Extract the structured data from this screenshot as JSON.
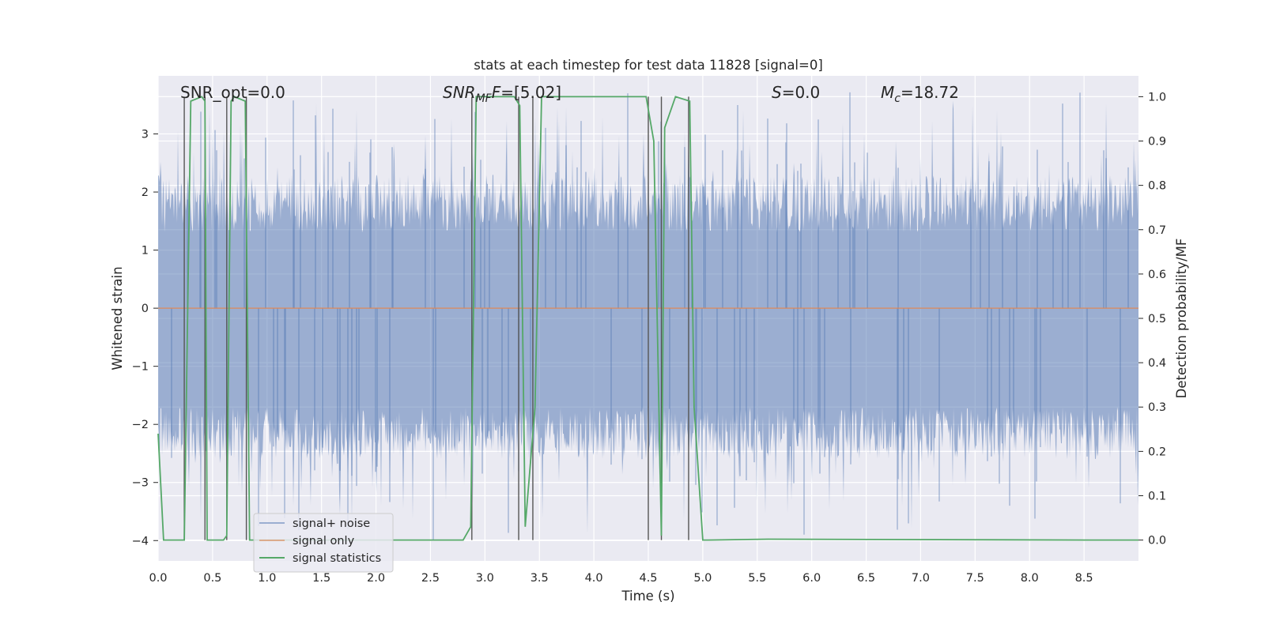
{
  "chart_data": {
    "type": "line",
    "title": "stats at each timestep for test data 11828 [signal=0]",
    "xlabel": "Time (s)",
    "ylabel": "Whitened strain",
    "y2label": "Detection probability/MF",
    "xlim": [
      0.0,
      9.0
    ],
    "ylim": [
      -4.35,
      4.0
    ],
    "y2lim": [
      -0.047,
      1.047
    ],
    "xticks": [
      "0.0",
      "0.5",
      "1.0",
      "1.5",
      "2.0",
      "2.5",
      "3.0",
      "3.5",
      "4.0",
      "4.5",
      "5.0",
      "5.5",
      "6.0",
      "6.5",
      "7.0",
      "7.5",
      "8.0",
      "8.5"
    ],
    "yticks": [
      "3",
      "2",
      "1",
      "0",
      "−1",
      "−2",
      "−3",
      "−4"
    ],
    "y2ticks": [
      "1.0",
      "0.9",
      "0.8",
      "0.7",
      "0.6",
      "0.5",
      "0.4",
      "0.3",
      "0.2",
      "0.1",
      "0.0"
    ],
    "grid": true,
    "legend_position": "lower-left",
    "annotations": {
      "snr_opt": "SNR_opt=0.0",
      "snr_mf_main": "SNR",
      "snr_mf_sub": "MF",
      "snr_mf_value": "=[5.02]",
      "s_label": "S",
      "s_value": "=0.0",
      "mc_main": "M",
      "mc_sub": "c",
      "mc_value": "=18.72"
    },
    "series": [
      {
        "name": "signal+ noise",
        "color": "#4c72b0",
        "axis": "left",
        "description_stat": "noise band",
        "band": {
          "core_low": -1.7,
          "core_high": 1.3,
          "peak_high": 3.6,
          "peak_low": -4.0
        },
        "samples_per_second": 1000,
        "x_range": [
          0.0,
          9.0
        ]
      },
      {
        "name": "signal only",
        "color": "#dd8452",
        "axis": "left",
        "x": [
          0.0,
          9.0
        ],
        "y": [
          0.0,
          0.0
        ]
      },
      {
        "name": "signal statistics",
        "color": "#55a868",
        "axis": "right",
        "x": [
          0.0,
          0.05,
          0.24,
          0.3,
          0.4,
          0.43,
          0.45,
          0.5,
          0.52,
          0.6,
          0.63,
          0.67,
          0.7,
          0.8,
          0.84,
          0.9,
          2.8,
          2.87,
          2.92,
          3.27,
          3.32,
          3.37,
          3.46,
          3.52,
          4.48,
          4.55,
          4.62,
          4.65,
          4.75,
          4.88,
          4.92,
          5.0,
          5.05,
          5.6,
          8.55,
          9.0
        ],
        "y": [
          0.24,
          0.0,
          0.0,
          0.99,
          1.0,
          0.99,
          0.0,
          0.0,
          0.0,
          0.0,
          0.01,
          0.99,
          1.0,
          0.99,
          0.0,
          0.0,
          0.0,
          0.03,
          1.0,
          1.0,
          0.98,
          0.03,
          0.3,
          1.0,
          1.0,
          0.9,
          0.01,
          0.93,
          1.0,
          0.99,
          0.3,
          0.0,
          0.0,
          0.002,
          0.0,
          0.0
        ]
      }
    ],
    "event_markers_x": [
      0.24,
      0.43,
      0.63,
      0.81,
      2.88,
      3.31,
      3.44,
      4.5,
      4.62,
      4.87
    ]
  }
}
